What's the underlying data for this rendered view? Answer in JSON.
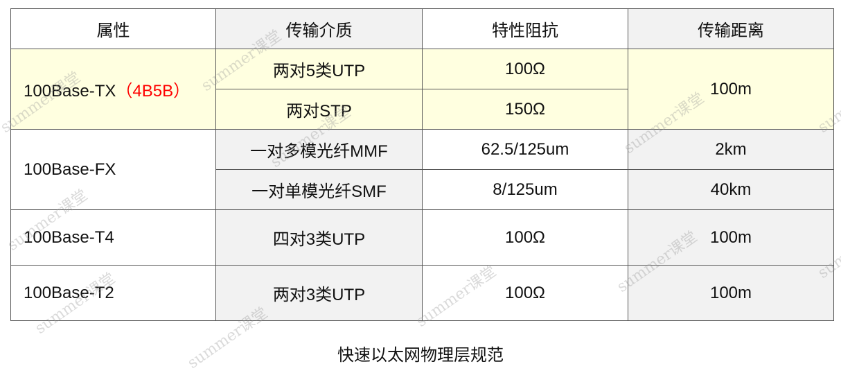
{
  "table": {
    "headers": [
      "属性",
      "传输介质",
      "特性阻抗",
      "传输距离"
    ],
    "tx": {
      "name": "100Base-TX",
      "note": "（4B5B）",
      "media": [
        "两对5类UTP",
        "两对STP"
      ],
      "impedance": [
        "100Ω",
        "150Ω"
      ],
      "distance": "100m"
    },
    "fx": {
      "name": "100Base-FX",
      "media": [
        "一对多模光纤MMF",
        "一对单模光纤SMF"
      ],
      "impedance": [
        "62.5/125um",
        "8/125um"
      ],
      "distance": [
        "2km",
        "40km"
      ]
    },
    "t4": {
      "name": "100Base-T4",
      "media": "四对3类UTP",
      "impedance": "100Ω",
      "distance": "100m"
    },
    "t2": {
      "name": "100Base-T2",
      "media": "两对3类UTP",
      "impedance": "100Ω",
      "distance": "100m"
    }
  },
  "caption": "快速以太网物理层规范",
  "watermark": "summer课堂",
  "colors": {
    "header_gray": "#f2f2f2",
    "highlight": "#ffffe0",
    "note_red": "#ff0000"
  }
}
